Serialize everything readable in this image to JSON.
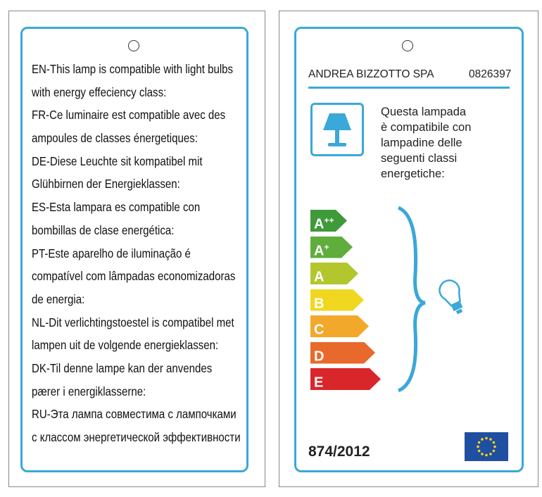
{
  "left_card": {
    "lines": [
      "EN-This lamp is compatible with light bulbs",
      "with energy effeciency class:",
      "FR-Ce luminaire est compatible avec des",
      "ampoules de classes énergetiques:",
      "DE-Diese Leuchte sit kompatibel mit",
      "Glühbirnen der Energieklassen:",
      "ES-Esta lampara es compatible con",
      "bombillas de clase energética:",
      "PT-Este aparelho de iluminação é",
      "compatível com lâmpadas economizadoras",
      "de energia:",
      "NL-Dit verlichtingstoestel is compatibel met",
      "lampen uit de volgende energieklassen:",
      "DK-Til denne lampe kan der anvendes",
      "pærer i energiklasserne:",
      "RU-Эта лампа совместима с лампочками",
      "с классом энергетической эффективности"
    ]
  },
  "right_card": {
    "company": "ANDREA BIZZOTTO SPA",
    "code": "0826397",
    "intro": [
      "Questa lampada",
      "è compatibile con",
      "lampadine delle",
      "seguenti classi",
      "energetiche:"
    ],
    "classes": [
      {
        "letter": "A",
        "sup": "++",
        "color": "#3f9a3a"
      },
      {
        "letter": "A",
        "sup": "+",
        "color": "#5fae3c"
      },
      {
        "letter": "A",
        "sup": "",
        "color": "#b4c62e"
      },
      {
        "letter": "B",
        "sup": "",
        "color": "#f0d821"
      },
      {
        "letter": "C",
        "sup": "",
        "color": "#f2a92b"
      },
      {
        "letter": "D",
        "sup": "",
        "color": "#e8692b"
      },
      {
        "letter": "E",
        "sup": "",
        "color": "#d9262b"
      }
    ],
    "regulation": "874/2012",
    "icons": [
      "lamp-icon",
      "bulb-icon",
      "eu-flag-icon"
    ]
  },
  "accent": "#3aa8d8"
}
